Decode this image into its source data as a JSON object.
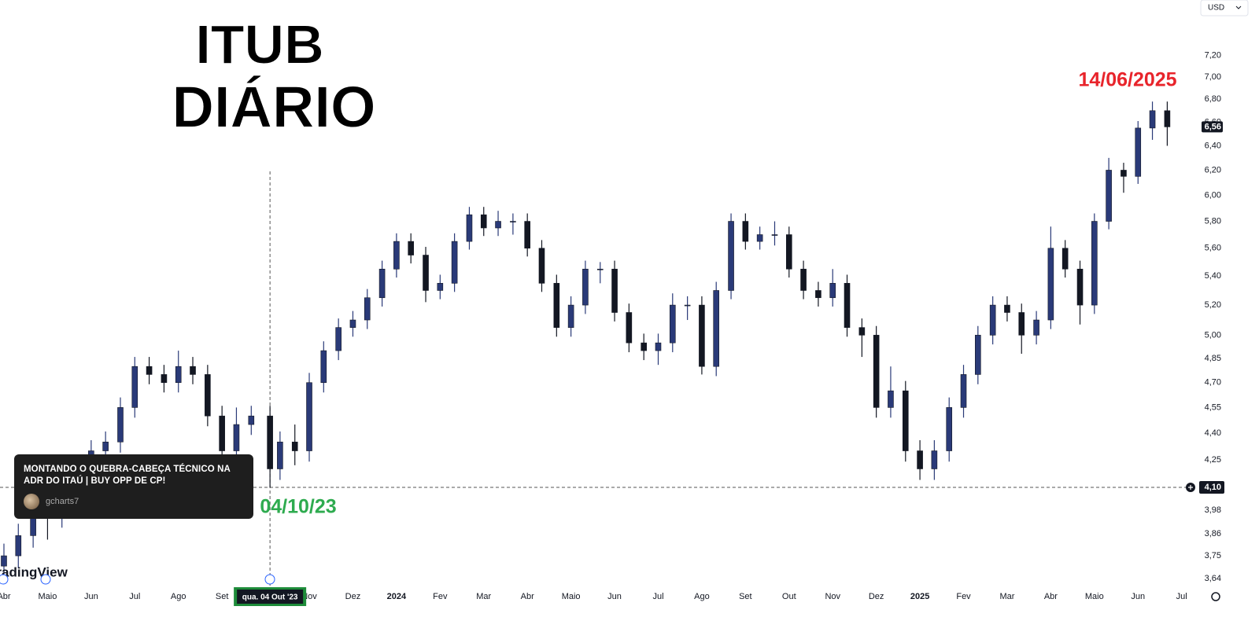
{
  "chart_data": {
    "type": "candlestick",
    "title": "ITUB",
    "subtitle": "DIÁRIO",
    "currency": "USD",
    "logo": "TradingView",
    "log_scale": true,
    "up_color": "#2a3a78",
    "down_color": "#131722",
    "x": [
      0,
      0.33,
      0.67,
      1,
      1.33,
      1.67,
      2,
      2.33,
      2.67,
      3,
      3.33,
      3.67,
      4,
      4.33,
      4.67,
      5,
      5.33,
      5.67,
      6.1,
      6.33,
      6.67,
      7,
      7.33,
      7.67,
      8,
      8.33,
      8.67,
      9,
      9.33,
      9.67,
      10,
      10.33,
      10.67,
      11,
      11.33,
      11.67,
      12,
      12.33,
      12.67,
      13,
      13.33,
      13.67,
      14,
      14.33,
      14.67,
      15,
      15.33,
      15.67,
      16,
      16.33,
      16.67,
      17,
      17.33,
      17.67,
      18,
      18.33,
      18.67,
      19,
      19.33,
      19.67,
      20,
      20.33,
      20.67,
      21,
      21.33,
      21.67,
      22,
      22.33,
      22.67,
      23,
      23.33,
      23.67,
      24,
      24.33,
      24.67,
      25,
      25.33,
      25.67,
      26,
      26.33,
      26.67
    ],
    "open": [
      3.7,
      3.75,
      3.85,
      4.0,
      3.95,
      4.05,
      4.2,
      4.3,
      4.35,
      4.55,
      4.8,
      4.75,
      4.7,
      4.8,
      4.75,
      4.5,
      4.3,
      4.45,
      4.5,
      4.2,
      4.35,
      4.3,
      4.7,
      4.9,
      5.05,
      5.1,
      5.25,
      5.45,
      5.65,
      5.55,
      5.3,
      5.35,
      5.65,
      5.85,
      5.75,
      5.8,
      5.8,
      5.6,
      5.35,
      5.05,
      5.2,
      5.45,
      5.45,
      5.15,
      4.95,
      4.9,
      4.95,
      5.2,
      5.2,
      4.8,
      5.3,
      5.8,
      5.65,
      5.7,
      5.7,
      5.45,
      5.3,
      5.25,
      5.35,
      5.05,
      5.0,
      4.55,
      4.65,
      4.3,
      4.2,
      4.3,
      4.55,
      4.75,
      5.0,
      5.2,
      5.15,
      5.0,
      5.1,
      5.6,
      5.45,
      5.2,
      5.8,
      6.2,
      6.15,
      6.55,
      6.7
    ],
    "high": [
      3.81,
      3.91,
      4.06,
      4.06,
      4.11,
      4.26,
      4.36,
      4.41,
      4.61,
      4.86,
      4.86,
      4.81,
      4.9,
      4.86,
      4.81,
      4.56,
      4.55,
      4.56,
      4.56,
      4.41,
      4.45,
      4.76,
      4.96,
      5.11,
      5.16,
      5.31,
      5.51,
      5.71,
      5.71,
      5.61,
      5.41,
      5.71,
      5.91,
      5.91,
      5.88,
      5.86,
      5.86,
      5.66,
      5.41,
      5.26,
      5.51,
      5.5,
      5.51,
      5.21,
      5.01,
      5.01,
      5.28,
      5.26,
      5.26,
      5.36,
      5.86,
      5.86,
      5.76,
      5.8,
      5.76,
      5.51,
      5.36,
      5.45,
      5.41,
      5.11,
      5.06,
      4.8,
      4.71,
      4.36,
      4.36,
      4.61,
      4.81,
      5.06,
      5.26,
      5.26,
      5.21,
      5.16,
      5.76,
      5.66,
      5.51,
      5.86,
      6.3,
      6.26,
      6.61,
      6.78,
      6.78
    ],
    "low": [
      3.64,
      3.69,
      3.79,
      3.83,
      3.89,
      3.99,
      4.14,
      4.24,
      4.29,
      4.49,
      4.69,
      4.64,
      4.64,
      4.69,
      4.44,
      4.24,
      4.24,
      4.39,
      4.1,
      4.14,
      4.22,
      4.24,
      4.64,
      4.84,
      4.99,
      5.04,
      5.19,
      5.39,
      5.49,
      5.22,
      5.24,
      5.29,
      5.59,
      5.69,
      5.69,
      5.7,
      5.54,
      5.29,
      4.99,
      4.99,
      5.14,
      5.35,
      5.09,
      4.89,
      4.84,
      4.81,
      4.89,
      5.1,
      4.75,
      4.74,
      5.24,
      5.59,
      5.59,
      5.62,
      5.39,
      5.24,
      5.19,
      5.19,
      4.99,
      4.86,
      4.49,
      4.49,
      4.24,
      4.14,
      4.14,
      4.24,
      4.49,
      4.69,
      4.94,
      5.09,
      4.88,
      4.94,
      5.04,
      5.39,
      5.07,
      5.14,
      5.74,
      6.02,
      6.09,
      6.45,
      6.4
    ],
    "close": [
      3.75,
      3.85,
      4.0,
      3.95,
      4.05,
      4.2,
      4.3,
      4.35,
      4.55,
      4.8,
      4.75,
      4.7,
      4.8,
      4.75,
      4.5,
      4.3,
      4.45,
      4.5,
      4.2,
      4.35,
      4.3,
      4.7,
      4.9,
      5.05,
      5.1,
      5.25,
      5.45,
      5.65,
      5.55,
      5.3,
      5.35,
      5.65,
      5.85,
      5.75,
      5.8,
      5.8,
      5.6,
      5.35,
      5.05,
      5.2,
      5.45,
      5.45,
      5.15,
      4.95,
      4.9,
      4.95,
      5.2,
      5.2,
      4.8,
      5.3,
      5.8,
      5.65,
      5.7,
      5.7,
      5.45,
      5.3,
      5.25,
      5.35,
      5.05,
      5.0,
      4.55,
      4.65,
      4.3,
      4.2,
      4.3,
      4.55,
      4.75,
      5.0,
      5.2,
      5.15,
      5.0,
      5.1,
      5.6,
      5.45,
      5.2,
      5.8,
      6.2,
      6.15,
      6.55,
      6.7,
      6.56
    ],
    "xlim": [
      -0.09,
      27.15
    ],
    "xticks": [
      {
        "value": 0,
        "label": "Abr"
      },
      {
        "value": 1,
        "label": "Maio"
      },
      {
        "value": 2,
        "label": "Jun"
      },
      {
        "value": 3,
        "label": "Jul"
      },
      {
        "value": 4,
        "label": "Ago"
      },
      {
        "value": 5,
        "label": "Set"
      },
      {
        "value": 6,
        "label": "Out"
      },
      {
        "value": 7,
        "label": "Nov"
      },
      {
        "value": 8,
        "label": "Dez"
      },
      {
        "value": 9,
        "label": "2024"
      },
      {
        "value": 10,
        "label": "Fev"
      },
      {
        "value": 11,
        "label": "Mar"
      },
      {
        "value": 12,
        "label": "Abr"
      },
      {
        "value": 13,
        "label": "Maio"
      },
      {
        "value": 14,
        "label": "Jun"
      },
      {
        "value": 15,
        "label": "Jul"
      },
      {
        "value": 16,
        "label": "Ago"
      },
      {
        "value": 17,
        "label": "Set"
      },
      {
        "value": 18,
        "label": "Out"
      },
      {
        "value": 19,
        "label": "Nov"
      },
      {
        "value": 20,
        "label": "Dez"
      },
      {
        "value": 21,
        "label": "2025"
      },
      {
        "value": 22,
        "label": "Fev"
      },
      {
        "value": 23,
        "label": "Mar"
      },
      {
        "value": 24,
        "label": "Abr"
      },
      {
        "value": 25,
        "label": "Maio"
      },
      {
        "value": 26,
        "label": "Jun"
      },
      {
        "value": 27,
        "label": "Jul"
      }
    ],
    "ylim": [
      3.607,
      7.74
    ],
    "yticks": [
      {
        "value": 7.2,
        "label": "7,20"
      },
      {
        "value": 7.0,
        "label": "7,00"
      },
      {
        "value": 6.8,
        "label": "6,80"
      },
      {
        "value": 6.6,
        "label": "6,60"
      },
      {
        "value": 6.4,
        "label": "6,40"
      },
      {
        "value": 6.2,
        "label": "6,20"
      },
      {
        "value": 6.0,
        "label": "6,00"
      },
      {
        "value": 5.8,
        "label": "5,80"
      },
      {
        "value": 5.6,
        "label": "5,60"
      },
      {
        "value": 5.4,
        "label": "5,40"
      },
      {
        "value": 5.2,
        "label": "5,20"
      },
      {
        "value": 5.0,
        "label": "5,00"
      },
      {
        "value": 4.85,
        "label": "4,85"
      },
      {
        "value": 4.7,
        "label": "4,70"
      },
      {
        "value": 4.55,
        "label": "4,55"
      },
      {
        "value": 4.4,
        "label": "4,40"
      },
      {
        "value": 4.25,
        "label": "4,25"
      },
      {
        "value": 4.1,
        "label": "4,10"
      },
      {
        "value": 3.98,
        "label": "3,98"
      },
      {
        "value": 3.86,
        "label": "3,86"
      },
      {
        "value": 3.75,
        "label": "3,75"
      },
      {
        "value": 3.64,
        "label": "3,64"
      }
    ],
    "last_price": {
      "value": 6.56,
      "label": "6,56"
    },
    "crosshair": {
      "price": {
        "value": 4.1,
        "label": "4,10"
      },
      "date": "qua. 04 Out '23"
    },
    "annotations": [
      {
        "text": "14/06/2025",
        "color": "#e8242b"
      },
      {
        "text": "04/10/23",
        "color": "#2eab4f"
      }
    ],
    "idea": {
      "title": "MONTANDO O QUEBRA-CABEÇA TÉCNICO NA ADR DO ITAÚ | BUY OPP DE CP!",
      "author": "gcharts7"
    }
  }
}
